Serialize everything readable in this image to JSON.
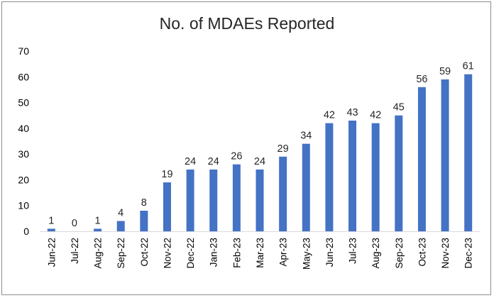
{
  "chart_data": {
    "type": "bar",
    "title": "No. of MDAEs Reported",
    "xlabel": "",
    "ylabel": "",
    "categories": [
      "Jun-22",
      "Jul-22",
      "Aug-22",
      "Sep-22",
      "Oct-22",
      "Nov-22",
      "Dec-22",
      "Jan-23",
      "Feb-23",
      "Mar-23",
      "Apr-23",
      "May-23",
      "Jun-23",
      "Jul-23",
      "Aug-23",
      "Sep-23",
      "Oct-23",
      "Nov-23",
      "Dec-23"
    ],
    "values": [
      1,
      0,
      1,
      4,
      8,
      19,
      24,
      24,
      26,
      24,
      29,
      34,
      42,
      43,
      42,
      45,
      56,
      59,
      61
    ],
    "ylim": [
      0,
      70
    ],
    "yticks": [
      0,
      10,
      20,
      30,
      40,
      50,
      60,
      70
    ],
    "grid": false,
    "legend": "none",
    "data_labels": true,
    "bar_color": "#4472c4"
  }
}
